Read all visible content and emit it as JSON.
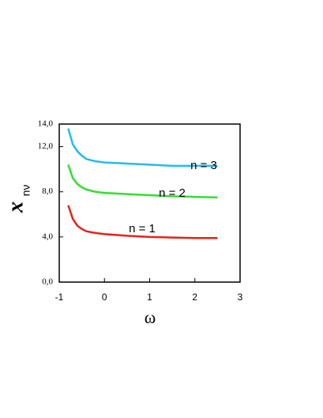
{
  "chart_data": {
    "type": "line",
    "x_label": "ω",
    "y_label": "x",
    "y_label_sub": "nν",
    "x": [
      -0.8,
      -0.7,
      -0.6,
      -0.5,
      -0.4,
      -0.2,
      0,
      0.5,
      1,
      1.5,
      2,
      2.5
    ],
    "series": [
      {
        "name": "n = 1",
        "color": "#e8201c",
        "values": [
          6.8,
          5.6,
          5.0,
          4.7,
          4.5,
          4.35,
          4.25,
          4.1,
          4.0,
          3.95,
          3.9,
          3.9
        ]
      },
      {
        "name": "n = 2",
        "color": "#33dd33",
        "values": [
          10.4,
          9.2,
          8.7,
          8.4,
          8.2,
          8.0,
          7.9,
          7.8,
          7.7,
          7.6,
          7.55,
          7.5
        ]
      },
      {
        "name": "n = 3",
        "color": "#22bbee",
        "values": [
          13.6,
          12.2,
          11.6,
          11.2,
          10.9,
          10.7,
          10.6,
          10.5,
          10.4,
          10.3,
          10.3,
          10.3
        ]
      }
    ],
    "xlim": [
      -1,
      3
    ],
    "xticks": [
      -1,
      0,
      1,
      2,
      3
    ],
    "ylim": [
      0,
      14
    ],
    "yticks": [
      {
        "value": 0,
        "label": "0,0"
      },
      {
        "value": 4,
        "label": "4,0"
      },
      {
        "value": 8,
        "label": "8,0"
      },
      {
        "value": 12,
        "label": "12,0"
      },
      {
        "value": 14,
        "label": "14,0"
      }
    ],
    "grid": false
  }
}
